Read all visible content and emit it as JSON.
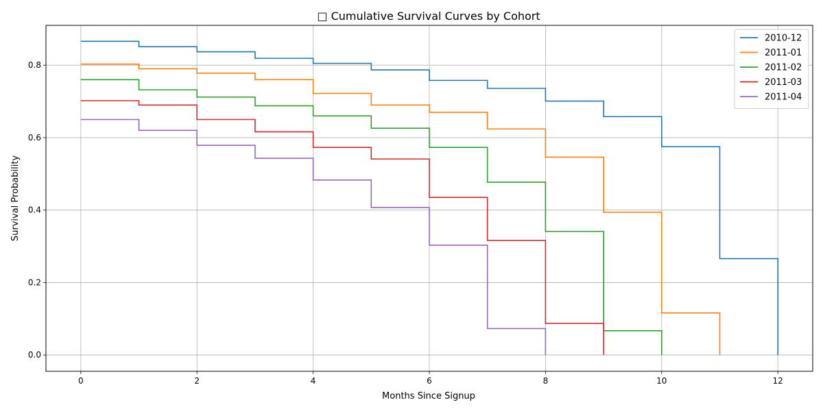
{
  "chart_data": {
    "type": "line",
    "step": "post",
    "title": "□ Cumulative Survival Curves by Cohort",
    "xlabel": "Months Since Signup",
    "ylabel": "Survival Probability",
    "xlim": [
      -0.6,
      12.6
    ],
    "ylim": [
      -0.045,
      0.91
    ],
    "xticks": [
      0,
      2,
      4,
      6,
      8,
      10,
      12
    ],
    "xtick_labels": [
      "0",
      "2",
      "4",
      "6",
      "8",
      "10",
      "12"
    ],
    "yticks": [
      0.0,
      0.2,
      0.4,
      0.6,
      0.8
    ],
    "ytick_labels": [
      "0.0",
      "0.2",
      "0.4",
      "0.6",
      "0.8"
    ],
    "grid": true,
    "legend_position": "top-right",
    "series": [
      {
        "name": "2010-12",
        "color": "#1f77b4",
        "x": [
          0,
          1,
          2,
          3,
          4,
          5,
          6,
          7,
          8,
          9,
          10,
          11,
          12
        ],
        "y": [
          0.866,
          0.851,
          0.837,
          0.819,
          0.805,
          0.787,
          0.758,
          0.736,
          0.701,
          0.658,
          0.575,
          0.266,
          0.0
        ]
      },
      {
        "name": "2011-01",
        "color": "#ff7f0e",
        "x": [
          0,
          1,
          2,
          3,
          4,
          5,
          6,
          7,
          8,
          9,
          10,
          11
        ],
        "y": [
          0.803,
          0.79,
          0.778,
          0.76,
          0.722,
          0.69,
          0.67,
          0.624,
          0.546,
          0.394,
          0.116,
          0.0
        ]
      },
      {
        "name": "2011-02",
        "color": "#2ca02c",
        "x": [
          0,
          1,
          2,
          3,
          4,
          5,
          6,
          7,
          8,
          9,
          10
        ],
        "y": [
          0.76,
          0.732,
          0.712,
          0.688,
          0.66,
          0.626,
          0.573,
          0.477,
          0.341,
          0.067,
          0.0
        ]
      },
      {
        "name": "2011-03",
        "color": "#d62728",
        "x": [
          0,
          1,
          2,
          3,
          4,
          5,
          6,
          7,
          8,
          9
        ],
        "y": [
          0.702,
          0.69,
          0.65,
          0.616,
          0.573,
          0.541,
          0.435,
          0.316,
          0.087,
          0.0
        ]
      },
      {
        "name": "2011-04",
        "color": "#9467bd",
        "x": [
          0,
          1,
          2,
          3,
          4,
          5,
          6,
          7,
          8
        ],
        "y": [
          0.65,
          0.62,
          0.579,
          0.543,
          0.483,
          0.407,
          0.303,
          0.073,
          0.0
        ]
      }
    ]
  }
}
